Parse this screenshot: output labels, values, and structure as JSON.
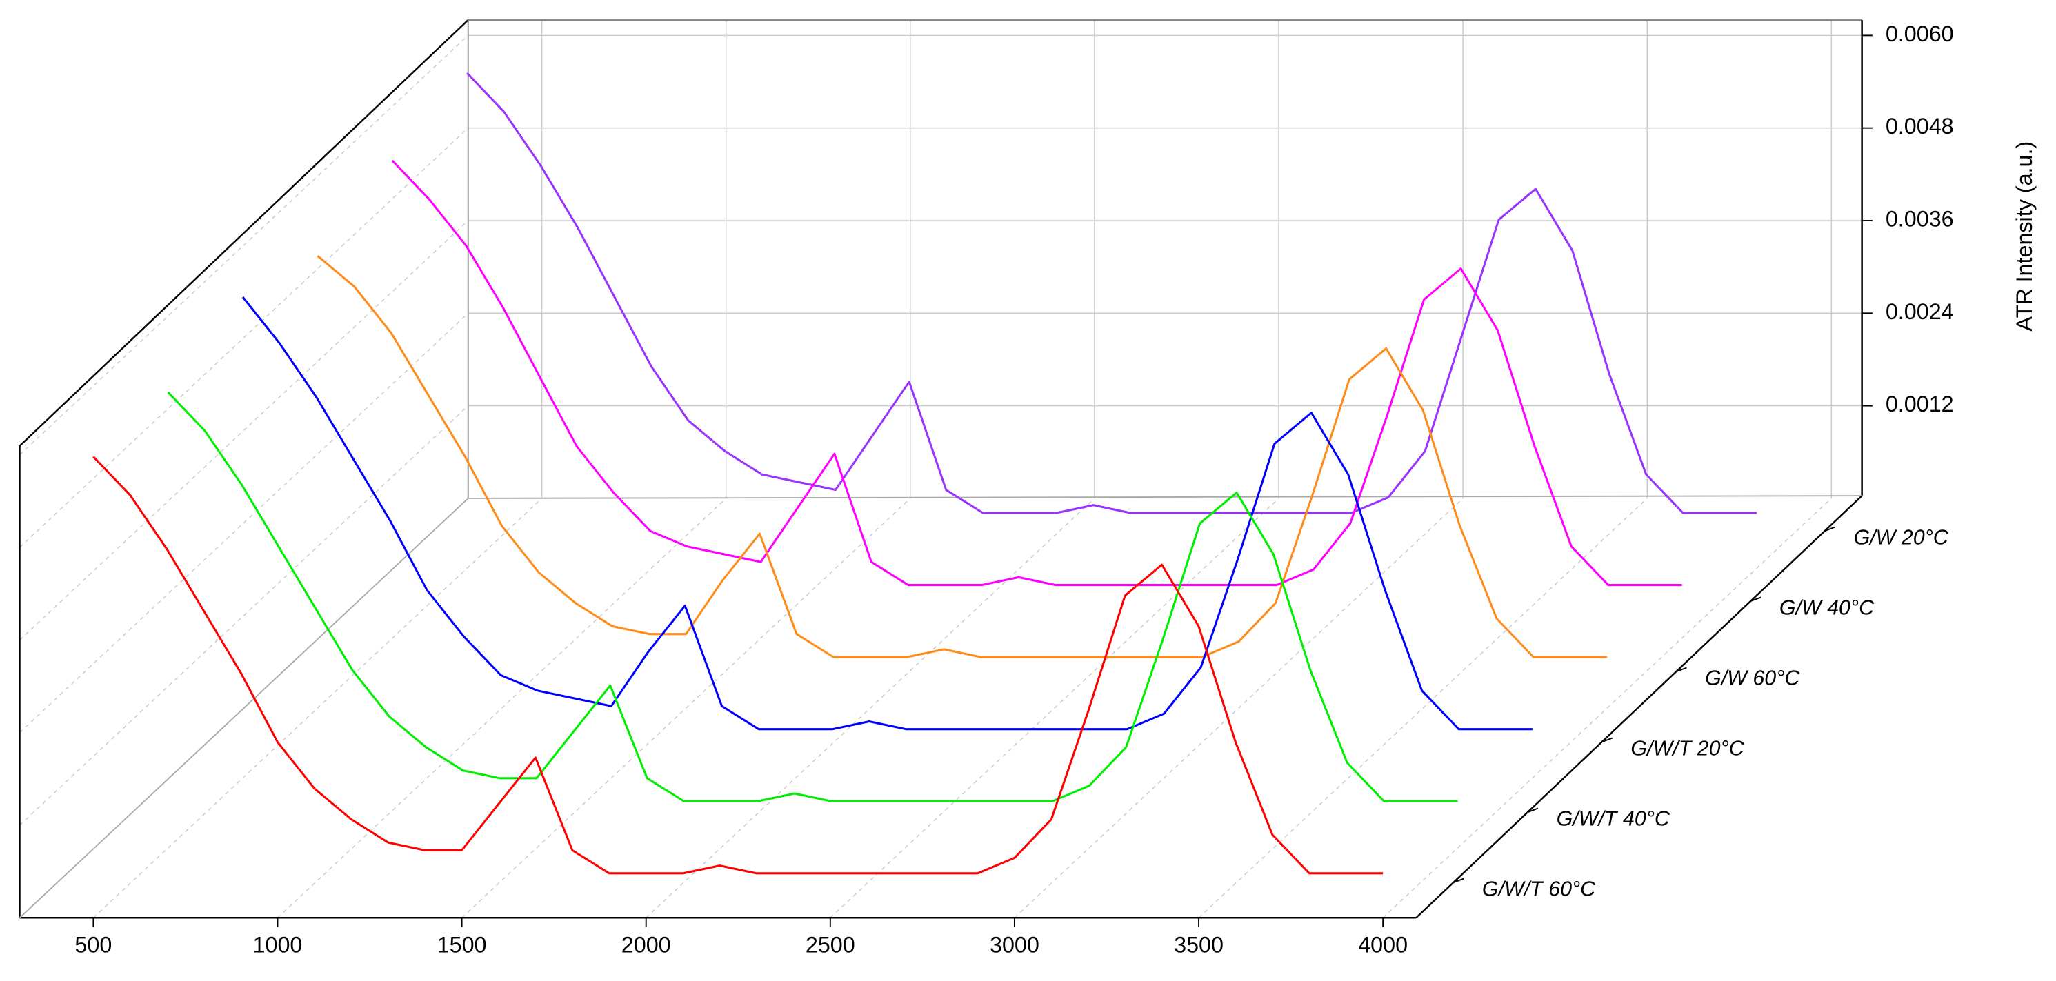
{
  "chart_data": {
    "type": "waterfall",
    "y_label": "ATR Intensity (a.u.)",
    "x": [
      500,
      600,
      700,
      800,
      900,
      1000,
      1100,
      1200,
      1300,
      1400,
      1500,
      1600,
      1700,
      1800,
      1900,
      2000,
      2100,
      2200,
      2300,
      2400,
      2500,
      2600,
      2700,
      2800,
      2900,
      3000,
      3100,
      3200,
      3300,
      3400,
      3500,
      3600,
      3700,
      3800,
      3900,
      4000
    ],
    "xlim": [
      300,
      4090
    ],
    "xticks": [
      500,
      1000,
      1500,
      2000,
      2500,
      3000,
      3500,
      4000
    ],
    "ylim": [
      0,
      0.0062
    ],
    "yticks": [
      0.0012,
      0.0024,
      0.0036,
      0.0048,
      {
        "value": 0.006,
        "label": "0.0060"
      }
    ],
    "grid": true,
    "series": [
      {
        "name": "G/W/T 60°C",
        "color": "#ff0000",
        "values": [
          0.0055,
          0.005,
          0.0043,
          0.0035,
          0.0027,
          0.0018,
          0.0012,
          0.0008,
          0.0005,
          0.0004,
          0.0004,
          0.001,
          0.0016,
          0.0004,
          0.0001,
          0.0001,
          0.0001,
          0.0002,
          0.0001,
          0.0001,
          0.0001,
          0.0001,
          0.0001,
          0.0001,
          0.0001,
          0.0003,
          0.0008,
          0.0022,
          0.0037,
          0.0041,
          0.0033,
          0.0018,
          0.0006,
          0.0001,
          0.0001,
          0.0001
        ]
      },
      {
        "name": "G/W/T 40°C",
        "color": "#00ee00",
        "values": [
          0.0054,
          0.0049,
          0.0042,
          0.0034,
          0.0026,
          0.0018,
          0.0012,
          0.0008,
          0.0005,
          0.0004,
          0.0004,
          0.001,
          0.0016,
          0.0004,
          0.0001,
          0.0001,
          0.0001,
          0.0002,
          0.0001,
          0.0001,
          0.0001,
          0.0001,
          0.0001,
          0.0001,
          0.0001,
          0.0003,
          0.0008,
          0.0022,
          0.0037,
          0.0041,
          0.0033,
          0.0018,
          0.0006,
          0.0001,
          0.0001,
          0.0001
        ]
      },
      {
        "name": "G/W/T 20°C",
        "color": "#0000ff",
        "values": [
          0.0057,
          0.0051,
          0.0044,
          0.0036,
          0.0028,
          0.0019,
          0.0013,
          0.0008,
          0.0006,
          0.0005,
          0.0004,
          0.0011,
          0.0017,
          0.0004,
          0.0001,
          0.0001,
          0.0001,
          0.0002,
          0.0001,
          0.0001,
          0.0001,
          0.0001,
          0.0001,
          0.0001,
          0.0001,
          0.0003,
          0.0009,
          0.0023,
          0.0038,
          0.0042,
          0.0034,
          0.0019,
          0.0006,
          0.0001,
          0.0001,
          0.0001
        ]
      },
      {
        "name": "G/W 60°C",
        "color": "#ff8c1a",
        "values": [
          0.0053,
          0.0049,
          0.0043,
          0.0035,
          0.0027,
          0.0018,
          0.0012,
          0.0008,
          0.0005,
          0.0004,
          0.0004,
          0.0011,
          0.0017,
          0.0004,
          0.0001,
          0.0001,
          0.0001,
          0.0002,
          0.0001,
          0.0001,
          0.0001,
          0.0001,
          0.0001,
          0.0001,
          0.0001,
          0.0003,
          0.0008,
          0.0022,
          0.0037,
          0.0041,
          0.0033,
          0.0018,
          0.0006,
          0.0001,
          0.0001,
          0.0001
        ]
      },
      {
        "name": "G/W 40°C",
        "color": "#ff00ff",
        "values": [
          0.0056,
          0.0051,
          0.0045,
          0.0037,
          0.0028,
          0.0019,
          0.0013,
          0.0008,
          0.0006,
          0.0005,
          0.0004,
          0.0011,
          0.0018,
          0.0004,
          0.0001,
          0.0001,
          0.0001,
          0.0002,
          0.0001,
          0.0001,
          0.0001,
          0.0001,
          0.0001,
          0.0001,
          0.0001,
          0.0003,
          0.0009,
          0.0023,
          0.0038,
          0.0042,
          0.0034,
          0.0019,
          0.0006,
          0.0001,
          0.0001,
          0.0001
        ]
      },
      {
        "name": "G/W 20°C",
        "color": "#9933ff",
        "values": [
          0.0058,
          0.0053,
          0.0046,
          0.0038,
          0.0029,
          0.002,
          0.0013,
          0.0009,
          0.0006,
          0.0005,
          0.0004,
          0.0011,
          0.0018,
          0.0004,
          0.0001,
          0.0001,
          0.0001,
          0.0002,
          0.0001,
          0.0001,
          0.0001,
          0.0001,
          0.0001,
          0.0001,
          0.0001,
          0.0003,
          0.0009,
          0.0024,
          0.0039,
          0.0043,
          0.0035,
          0.0019,
          0.0006,
          0.0001,
          0.0001,
          0.0001
        ]
      }
    ]
  }
}
